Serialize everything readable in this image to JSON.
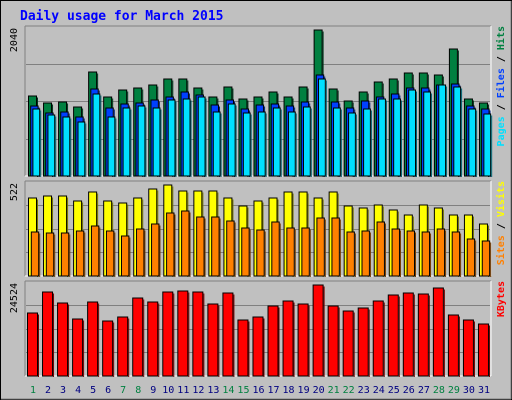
{
  "title": "Daily usage for March 2015",
  "colors": {
    "background": "#c0c0c0",
    "plot_bg": "#c0c0c0",
    "title": "#0000ff",
    "hits": "#008040",
    "files": "#0040ff",
    "pages": "#00e0ff",
    "visits": "#ffff00",
    "sites": "#ff8000",
    "kbytes": "#ff0000",
    "weekend_day": "#008040",
    "weekday": "#000080"
  },
  "chart_data": [
    {
      "type": "bar",
      "panel": "top",
      "ymax_label": "2040",
      "legend": [
        "Pages",
        "Files",
        "Hits"
      ],
      "categories": [
        "1",
        "2",
        "3",
        "4",
        "5",
        "6",
        "7",
        "8",
        "9",
        "10",
        "11",
        "12",
        "13",
        "14",
        "15",
        "16",
        "17",
        "18",
        "19",
        "20",
        "21",
        "22",
        "23",
        "24",
        "25",
        "26",
        "27",
        "28",
        "29",
        "30",
        "31"
      ],
      "weekend_days": [
        "1",
        "7",
        "8",
        "14",
        "15",
        "21",
        "22",
        "28",
        "29"
      ],
      "series": [
        {
          "name": "Hits",
          "values": [
            1120,
            1020,
            1040,
            960,
            1460,
            1110,
            1200,
            1230,
            1270,
            1350,
            1350,
            1230,
            1110,
            1240,
            1070,
            1100,
            1170,
            1100,
            1240,
            2040,
            1210,
            1050,
            1170,
            1320,
            1350,
            1440,
            1440,
            1410,
            1780,
            1080,
            1020
          ]
        },
        {
          "name": "Files",
          "values": [
            980,
            880,
            900,
            830,
            1220,
            950,
            1000,
            1020,
            1060,
            1100,
            1180,
            1130,
            990,
            1060,
            930,
            990,
            1010,
            980,
            1040,
            1410,
            1040,
            950,
            1050,
            1110,
            1150,
            1230,
            1230,
            1270,
            1290,
            980,
            940
          ]
        },
        {
          "name": "Pages",
          "values": [
            940,
            850,
            830,
            760,
            1140,
            830,
            950,
            980,
            950,
            1060,
            1080,
            1100,
            900,
            1010,
            880,
            890,
            950,
            890,
            970,
            1360,
            950,
            880,
            940,
            1080,
            1070,
            1200,
            1180,
            1270,
            1240,
            940,
            860
          ]
        }
      ]
    },
    {
      "type": "bar",
      "panel": "middle",
      "ymax_label": "522",
      "legend": [
        "Sites",
        "Visits"
      ],
      "categories": [
        "1",
        "2",
        "3",
        "4",
        "5",
        "6",
        "7",
        "8",
        "9",
        "10",
        "11",
        "12",
        "13",
        "14",
        "15",
        "16",
        "17",
        "18",
        "19",
        "20",
        "21",
        "22",
        "23",
        "24",
        "25",
        "26",
        "27",
        "28",
        "29",
        "30",
        "31"
      ],
      "series": [
        {
          "name": "Visits",
          "values": [
            450,
            460,
            460,
            430,
            480,
            430,
            420,
            450,
            500,
            522,
            490,
            490,
            490,
            450,
            400,
            430,
            450,
            480,
            480,
            450,
            480,
            400,
            390,
            410,
            380,
            350,
            410,
            390,
            350,
            350,
            300
          ]
        },
        {
          "name": "Sites",
          "values": [
            255,
            245,
            245,
            260,
            285,
            260,
            230,
            270,
            300,
            360,
            370,
            340,
            340,
            315,
            275,
            265,
            310,
            275,
            275,
            330,
            330,
            250,
            260,
            310,
            270,
            260,
            255,
            270,
            250,
            210,
            200
          ]
        }
      ]
    },
    {
      "type": "bar",
      "panel": "bottom",
      "ymax_label": "24524",
      "legend": [
        "KBytes"
      ],
      "categories": [
        "1",
        "2",
        "3",
        "4",
        "5",
        "6",
        "7",
        "8",
        "9",
        "10",
        "11",
        "12",
        "13",
        "14",
        "15",
        "16",
        "17",
        "18",
        "19",
        "20",
        "21",
        "22",
        "23",
        "24",
        "25",
        "26",
        "27",
        "28",
        "29",
        "30",
        "31"
      ],
      "series": [
        {
          "name": "KBytes",
          "values": [
            17000,
            22700,
            19800,
            15400,
            20000,
            14900,
            16000,
            21000,
            19900,
            22700,
            22800,
            22700,
            19400,
            22400,
            15000,
            15900,
            18800,
            20300,
            19400,
            24524,
            18800,
            17400,
            18200,
            20300,
            21900,
            22500,
            22100,
            23600,
            16400,
            15200,
            13900
          ]
        }
      ]
    }
  ]
}
